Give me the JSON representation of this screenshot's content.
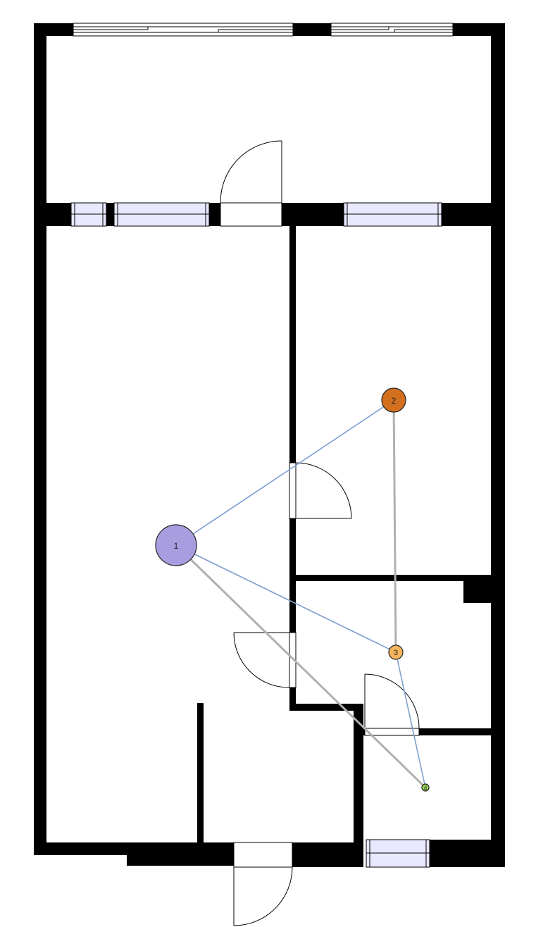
{
  "floorplan": {
    "colors": {
      "wall": "#000000",
      "window_fill": "#e8e8ff",
      "door_line": "#000000",
      "edge_blue": "#7f9fcf",
      "edge_gray": "#b0b0b0"
    }
  },
  "graph": {
    "nodes": [
      {
        "id": "1",
        "label": "1",
        "color": "#a89ddf"
      },
      {
        "id": "2",
        "label": "2",
        "color": "#d2701f"
      },
      {
        "id": "3",
        "label": "3",
        "color": "#f7b45a"
      },
      {
        "id": "4",
        "label": "4",
        "color": "#9fdc5a"
      }
    ],
    "edges": [
      {
        "from": "1",
        "to": "2",
        "style": "blue"
      },
      {
        "from": "1",
        "to": "3",
        "style": "blue"
      },
      {
        "from": "1",
        "to": "4",
        "style": "gray"
      },
      {
        "from": "2",
        "to": "3",
        "style": "gray"
      },
      {
        "from": "3",
        "to": "4",
        "style": "blue"
      }
    ]
  }
}
